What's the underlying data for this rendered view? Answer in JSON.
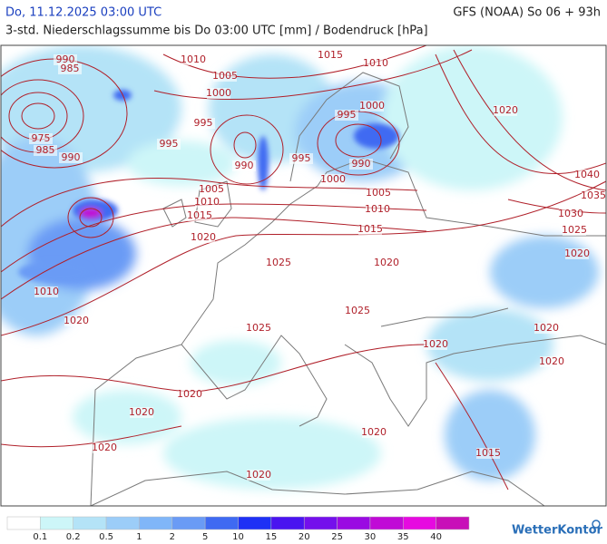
{
  "header": {
    "datetime": "Do, 11.12.2025 03:00 UTC",
    "model": "GFS (NOAA) So 06 + 93h",
    "subtitle": "3-std. Niederschlagssumme bis Do 03:00 UTC [mm] / Bodendruck [hPa]"
  },
  "map": {
    "isobar_labels": [
      990,
      985,
      1010,
      1005,
      1000,
      1015,
      1010,
      995,
      975,
      985,
      990,
      995,
      990,
      995,
      995,
      1000,
      990,
      1020,
      1000,
      1005,
      1010,
      1015,
      1005,
      1010,
      1015,
      1040,
      1035,
      1030,
      1025,
      1020,
      1020,
      1025,
      1020,
      1010,
      1020,
      1025,
      1025,
      1020,
      1020,
      1020,
      1020,
      1020,
      1020,
      1020,
      1015,
      1020
    ]
  },
  "legend": {
    "colors": [
      "#ffffff",
      "#cdf6f8",
      "#b4e3f7",
      "#9ccdf8",
      "#80b6f8",
      "#6a9bf5",
      "#3f6af2",
      "#1e30f5",
      "#4a14f0",
      "#7410ec",
      "#9a0ae2",
      "#c00ad6",
      "#e60ae0",
      "#c80fb8"
    ],
    "ticks": [
      0.1,
      0.2,
      0.5,
      1,
      2,
      5,
      10,
      15,
      20,
      25,
      30,
      35,
      40
    ]
  },
  "brand": "WetterKontor"
}
